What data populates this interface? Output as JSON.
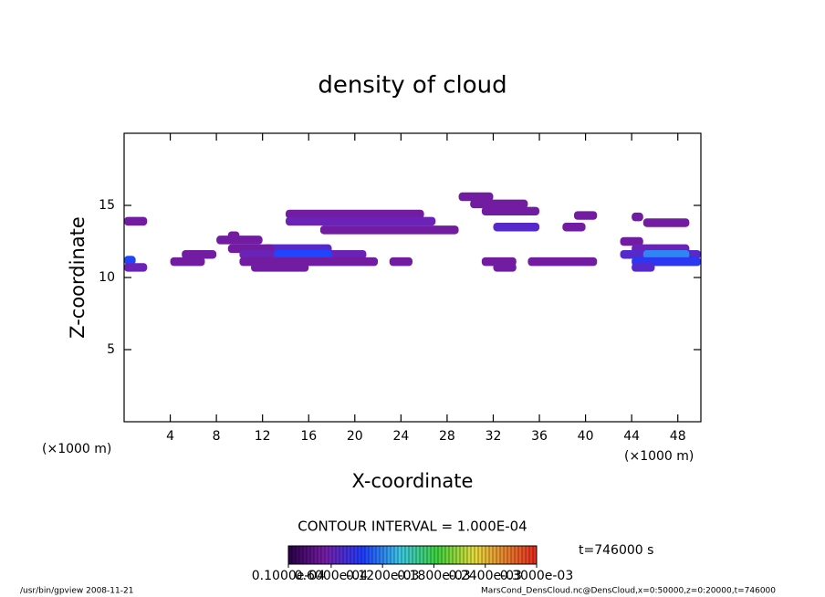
{
  "chart_data": {
    "type": "contour",
    "title": "density of cloud",
    "x_label": "X-coordinate",
    "y_label": "Z-coordinate",
    "x_unit": "(×1000 m)",
    "y_unit": "(×1000 m)",
    "xlim": [
      0,
      50
    ],
    "ylim": [
      0,
      20
    ],
    "xticks": [
      4,
      8,
      12,
      16,
      20,
      24,
      28,
      32,
      36,
      40,
      44,
      48
    ],
    "yticks": [
      5,
      10,
      15
    ],
    "contour_interval": "CONTOUR INTERVAL = 1.000E-04",
    "time_label": "t=746000 s",
    "colorbar_ticks": [
      {
        "value": 1e-05,
        "label": "0.1000e-04"
      },
      {
        "value": 6e-05,
        "label": "0.6000e-04"
      },
      {
        "value": 0.00012,
        "label": "0.1200e-03"
      },
      {
        "value": 0.00018,
        "label": "0.1800e-03"
      },
      {
        "value": 0.00024,
        "label": "0.2400e-03"
      },
      {
        "value": 0.0003,
        "label": "0.3000e-03"
      }
    ],
    "cells": {
      "z": [
        15.6,
        15.1,
        14.6,
        14.4,
        14.3,
        14.2,
        13.9,
        13.9,
        13.8,
        13.5,
        13.5,
        13.3,
        12.9,
        12.6,
        12.5,
        12.0,
        12.0,
        12.0,
        11.6,
        11.6,
        11.6,
        11.6,
        11.6,
        11.2,
        11.1,
        11.1,
        11.1,
        11.1,
        11.1,
        11.1,
        10.7,
        10.7,
        10.7,
        10.7
      ],
      "x_start": [
        29,
        30,
        31,
        14,
        39,
        44,
        0,
        14,
        45,
        32,
        38,
        17,
        9,
        8,
        43,
        12,
        9,
        44,
        5,
        10,
        13,
        43,
        45,
        0,
        4,
        10,
        23,
        31,
        35,
        44,
        0,
        11,
        32,
        44
      ],
      "x_end": [
        32,
        35,
        36,
        26,
        41,
        45,
        2,
        27,
        49,
        36,
        40,
        29,
        10,
        12,
        45,
        18,
        13,
        49,
        8,
        21,
        18,
        50,
        49,
        1,
        7,
        22,
        25,
        34,
        41,
        50,
        2,
        16,
        34,
        46
      ],
      "values": [
        5e-05,
        5e-05,
        5e-05,
        5e-05,
        5e-05,
        5e-05,
        5e-05,
        6e-05,
        5e-05,
        7e-05,
        5e-05,
        5e-05,
        5e-05,
        5e-05,
        5e-05,
        7e-05,
        5e-05,
        6e-05,
        5e-05,
        6e-05,
        0.0001,
        7e-05,
        0.00012,
        0.0001,
        5e-05,
        5e-05,
        5e-05,
        5e-05,
        5e-05,
        9e-05,
        6e-05,
        5e-05,
        5e-05,
        7e-05
      ]
    },
    "footer_left": "/usr/bin/gpview  2008-11-21",
    "footer_right": "MarsCond_DensCloud.nc@DensCloud,x=0:50000,z=0:20000,t=746000"
  }
}
